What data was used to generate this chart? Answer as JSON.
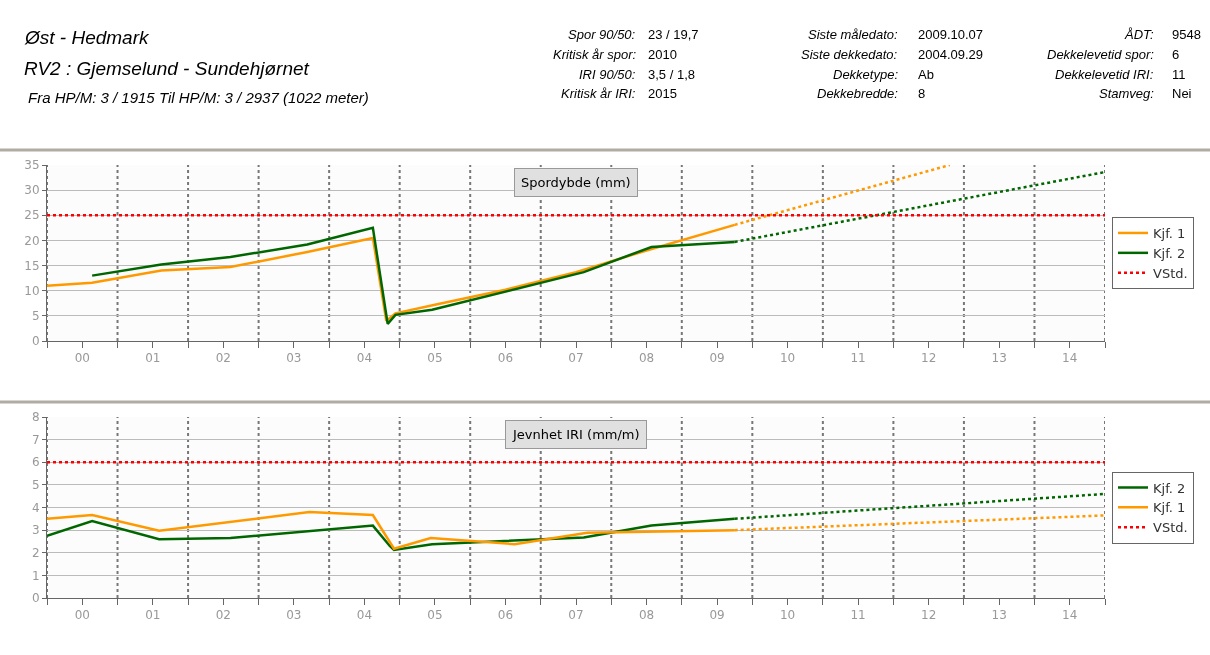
{
  "chart_data": [
    {
      "type": "other",
      "title": "Øst - Hedmark",
      "subtitle": "RV2 : Gjemselund - Sundehjørnet",
      "annotations": [
        "Fra HP/M: 3 / 1915 Til HP/M: 3 / 2937 (1022 meter)",
        "Spor 90/50:",
        "23 / 19,7",
        "Kritisk år spor:",
        "2010",
        "IRI 90/50:",
        "3,5 / 1,8",
        "Kritisk år IRI:",
        "2015",
        "Siste måledato:",
        "2009.10.07",
        "Siste dekkedato:",
        "2004.09.29",
        "Dekketype:",
        "Ab",
        "Dekkebredde:",
        "8",
        "ÅDT:",
        "9548",
        "Dekkelevetid spor:",
        "6",
        "Dekkelevetid IRI:",
        "11",
        "Stamveg:",
        "Nei"
      ]
    },
    {
      "type": "line",
      "title": "Spordybde (mm)",
      "xlim": [
        0,
        15
      ],
      "xticks": [
        {
          "value": 0,
          "label": null
        },
        {
          "value": 0.5,
          "label": "00"
        },
        {
          "value": 1,
          "label": null
        },
        {
          "value": 1.5,
          "label": "01"
        },
        {
          "value": 2,
          "label": null
        },
        {
          "value": 2.5,
          "label": "02"
        },
        {
          "value": 3,
          "label": null
        },
        {
          "value": 3.5,
          "label": "03"
        },
        {
          "value": 4,
          "label": null
        },
        {
          "value": 4.5,
          "label": "04"
        },
        {
          "value": 5,
          "label": null
        },
        {
          "value": 5.5,
          "label": "05"
        },
        {
          "value": 6,
          "label": null
        },
        {
          "value": 6.5,
          "label": "06"
        },
        {
          "value": 7,
          "label": null
        },
        {
          "value": 7.5,
          "label": "07"
        },
        {
          "value": 8,
          "label": null
        },
        {
          "value": 8.5,
          "label": "08"
        },
        {
          "value": 9,
          "label": null
        },
        {
          "value": 9.5,
          "label": "09"
        },
        {
          "value": 10,
          "label": null
        },
        {
          "value": 10.5,
          "label": "10"
        },
        {
          "value": 11,
          "label": null
        },
        {
          "value": 11.5,
          "label": "11"
        },
        {
          "value": 12,
          "label": null
        },
        {
          "value": 12.5,
          "label": "12"
        },
        {
          "value": 13,
          "label": null
        },
        {
          "value": 13.5,
          "label": "13"
        },
        {
          "value": 14,
          "label": null
        },
        {
          "value": 14.5,
          "label": "14"
        },
        {
          "value": 15,
          "label": null
        }
      ],
      "ylim": [
        0,
        35
      ],
      "yticks": [
        0,
        5,
        10,
        15,
        20,
        25,
        30,
        35
      ],
      "grid": true,
      "legend": "right",
      "marker": "none",
      "ref_lines": [
        {
          "axis": "y",
          "value": 25,
          "label": "VStd.",
          "color": "#ff0000",
          "line_style": "dotted"
        }
      ],
      "series": [
        {
          "name": "Kjf. 1",
          "color": "#ff9900",
          "x": [
            0,
            0.64,
            1.62,
            2.6,
            3.69,
            4.62,
            4.81,
            4.94,
            5.5,
            6.5,
            7.5,
            8.5,
            9.75
          ],
          "values": [
            11,
            11.6,
            14,
            14.7,
            17.7,
            20.5,
            4,
            5.5,
            7.2,
            10.2,
            13.7,
            18,
            23.1
          ]
        },
        {
          "name": "Kjf. 2",
          "color": "#006600",
          "x": [
            0.64,
            1.62,
            2.6,
            3.69,
            4.62,
            4.83,
            4.94,
            5.46,
            7.61,
            8.57,
            9.75
          ],
          "values": [
            13,
            15.2,
            16.7,
            19.2,
            22.5,
            3.4,
            5.2,
            6.2,
            13.7,
            18.7,
            19.7
          ]
        },
        {
          "color": "#ff9900",
          "line_style": "dotted",
          "x": [
            9.75,
            12.8
          ],
          "values": [
            23.1,
            35
          ]
        },
        {
          "color": "#006600",
          "line_style": "dotted",
          "x": [
            9.75,
            15
          ],
          "values": [
            19.7,
            33.6
          ]
        }
      ]
    },
    {
      "type": "line",
      "title": "Jevnhet IRI (mm/m)",
      "xlim": [
        0,
        15
      ],
      "xticks": [
        {
          "value": 0,
          "label": null
        },
        {
          "value": 0.5,
          "label": "00"
        },
        {
          "value": 1,
          "label": null
        },
        {
          "value": 1.5,
          "label": "01"
        },
        {
          "value": 2,
          "label": null
        },
        {
          "value": 2.5,
          "label": "02"
        },
        {
          "value": 3,
          "label": null
        },
        {
          "value": 3.5,
          "label": "03"
        },
        {
          "value": 4,
          "label": null
        },
        {
          "value": 4.5,
          "label": "04"
        },
        {
          "value": 5,
          "label": null
        },
        {
          "value": 5.5,
          "label": "05"
        },
        {
          "value": 6,
          "label": null
        },
        {
          "value": 6.5,
          "label": "06"
        },
        {
          "value": 7,
          "label": null
        },
        {
          "value": 7.5,
          "label": "07"
        },
        {
          "value": 8,
          "label": null
        },
        {
          "value": 8.5,
          "label": "08"
        },
        {
          "value": 9,
          "label": null
        },
        {
          "value": 9.5,
          "label": "09"
        },
        {
          "value": 10,
          "label": null
        },
        {
          "value": 10.5,
          "label": "10"
        },
        {
          "value": 11,
          "label": null
        },
        {
          "value": 11.5,
          "label": "11"
        },
        {
          "value": 12,
          "label": null
        },
        {
          "value": 12.5,
          "label": "12"
        },
        {
          "value": 13,
          "label": null
        },
        {
          "value": 13.5,
          "label": "13"
        },
        {
          "value": 14,
          "label": null
        },
        {
          "value": 14.5,
          "label": "14"
        },
        {
          "value": 15,
          "label": null
        }
      ],
      "ylim": [
        0,
        8
      ],
      "yticks": [
        0,
        1,
        2,
        3,
        4,
        5,
        6,
        7,
        8
      ],
      "grid": true,
      "legend": "right",
      "marker": "none",
      "ref_lines": [
        {
          "axis": "y",
          "value": 6,
          "label": "VStd.",
          "color": "#ff0000",
          "line_style": "dotted"
        }
      ],
      "series": [
        {
          "name": "Kjf. 2",
          "color": "#006600",
          "x": [
            0,
            0.64,
            1.59,
            2.6,
            4.62,
            4.86,
            4.92,
            5.46,
            7.61,
            8.57,
            9.75
          ],
          "values": [
            2.75,
            3.4,
            2.6,
            2.65,
            3.2,
            2.3,
            2.12,
            2.38,
            2.67,
            3.2,
            3.5
          ]
        },
        {
          "name": "Kjf. 1",
          "color": "#ff9900",
          "x": [
            0,
            0.64,
            1.59,
            3.72,
            4.62,
            4.92,
            5.44,
            6.63,
            7.66,
            9.75
          ],
          "values": [
            3.5,
            3.67,
            2.97,
            3.8,
            3.67,
            2.18,
            2.65,
            2.38,
            2.88,
            3
          ]
        },
        {
          "color": "#006600",
          "line_style": "dotted",
          "x": [
            9.75,
            15
          ],
          "values": [
            3.5,
            4.6
          ]
        },
        {
          "color": "#ff9900",
          "line_style": "dotted",
          "x": [
            9.75,
            15
          ],
          "values": [
            3,
            3.65
          ]
        }
      ]
    }
  ]
}
